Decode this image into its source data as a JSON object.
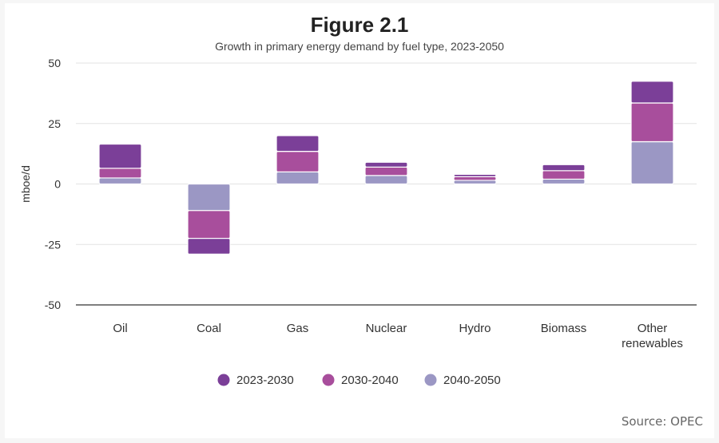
{
  "figure_title": "Figure 2.1",
  "subtitle": "Growth in primary energy demand by fuel type, 2023-2050",
  "source": "Source: OPEC",
  "colors": {
    "2023-2030": "#7b3f98",
    "2030-2040": "#a84e9c",
    "2040-2050": "#9b97c4"
  },
  "chart_data": {
    "type": "bar",
    "stacked": true,
    "title": "Figure 2.1",
    "subtitle": "Growth in primary energy demand by fuel type, 2023-2050",
    "xlabel": "",
    "ylabel": "mboe/d",
    "ylim": [
      -50,
      50
    ],
    "yticks": [
      50,
      25,
      0,
      -25,
      -50
    ],
    "ytick_labels": [
      "50",
      "25",
      "0",
      "-25",
      "-50"
    ],
    "grid": true,
    "legend_position": "bottom",
    "categories": [
      "Oil",
      "Coal",
      "Gas",
      "Nuclear",
      "Hydro",
      "Biomass",
      "Other renewables"
    ],
    "category_lines": [
      [
        "Oil"
      ],
      [
        "Coal"
      ],
      [
        "Gas"
      ],
      [
        "Nuclear"
      ],
      [
        "Hydro"
      ],
      [
        "Biomass"
      ],
      [
        "Other",
        "renewables"
      ]
    ],
    "series": [
      {
        "name": "2040-2050",
        "values": [
          2.5,
          -11,
          5,
          3.5,
          1.5,
          2,
          17.5
        ]
      },
      {
        "name": "2030-2040",
        "values": [
          4,
          -11.5,
          8.5,
          3.5,
          1.5,
          3.5,
          16
        ]
      },
      {
        "name": "2023-2030",
        "values": [
          10,
          -6.5,
          6.5,
          2,
          1,
          2.5,
          9
        ]
      }
    ],
    "legend_order": [
      "2023-2030",
      "2030-2040",
      "2040-2050"
    ]
  }
}
